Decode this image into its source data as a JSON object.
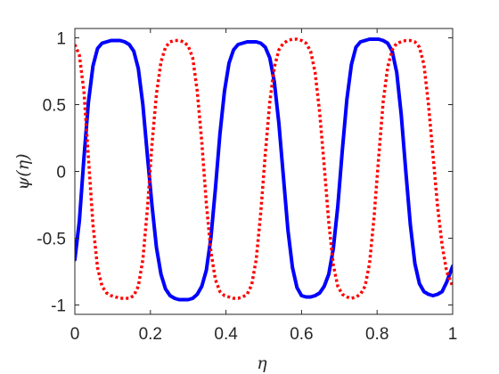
{
  "chart_data": {
    "type": "line",
    "title": "",
    "xlabel": "η",
    "ylabel": "ψ(η)",
    "xlim": [
      0,
      1
    ],
    "ylim": [
      -1.07,
      1.07
    ],
    "grid": false,
    "legend": "none",
    "x_ticks": [
      0,
      0.2,
      0.4,
      0.6,
      0.8,
      1
    ],
    "x_tick_labels": [
      "0",
      "0.2",
      "0.4",
      "0.6",
      "0.8",
      "1"
    ],
    "y_ticks": [
      -1,
      -0.5,
      0,
      0.5,
      1
    ],
    "y_tick_labels": [
      "-1",
      "-0.5",
      "0",
      "0.5",
      "1"
    ],
    "colors": {
      "solid_series": "#0000ff",
      "dotted_series": "#ff0000",
      "axes": "#262626"
    },
    "series": [
      {
        "style": "solid",
        "color": "#0000ff",
        "x": [
          0,
          0.012,
          0.024,
          0.036,
          0.048,
          0.06,
          0.072,
          0.084,
          0.096,
          0.108,
          0.12,
          0.132,
          0.144,
          0.156,
          0.168,
          0.18,
          0.192,
          0.204,
          0.216,
          0.228,
          0.24,
          0.252,
          0.264,
          0.276,
          0.288,
          0.3,
          0.312,
          0.324,
          0.336,
          0.348,
          0.36,
          0.372,
          0.384,
          0.396,
          0.408,
          0.42,
          0.432,
          0.444,
          0.456,
          0.468,
          0.48,
          0.492,
          0.504,
          0.516,
          0.528,
          0.54,
          0.552,
          0.564,
          0.576,
          0.588,
          0.6,
          0.612,
          0.624,
          0.636,
          0.648,
          0.66,
          0.672,
          0.684,
          0.696,
          0.708,
          0.72,
          0.732,
          0.744,
          0.756,
          0.768,
          0.78,
          0.792,
          0.804,
          0.816,
          0.828,
          0.84,
          0.852,
          0.864,
          0.876,
          0.888,
          0.9,
          0.912,
          0.924,
          0.936,
          0.948,
          0.96,
          0.972,
          0.984,
          1
        ],
        "y": [
          -0.66,
          -0.37,
          0.1,
          0.52,
          0.79,
          0.92,
          0.96,
          0.97,
          0.98,
          0.98,
          0.98,
          0.97,
          0.95,
          0.9,
          0.77,
          0.5,
          0.12,
          -0.25,
          -0.57,
          -0.77,
          -0.88,
          -0.93,
          -0.95,
          -0.96,
          -0.96,
          -0.96,
          -0.95,
          -0.92,
          -0.86,
          -0.74,
          -0.5,
          -0.13,
          0.28,
          0.6,
          0.81,
          0.91,
          0.95,
          0.96,
          0.97,
          0.97,
          0.97,
          0.96,
          0.93,
          0.85,
          0.67,
          0.36,
          -0.04,
          -0.44,
          -0.72,
          -0.87,
          -0.93,
          -0.94,
          -0.94,
          -0.93,
          -0.91,
          -0.86,
          -0.77,
          -0.58,
          -0.26,
          0.16,
          0.54,
          0.8,
          0.93,
          0.97,
          0.98,
          0.99,
          0.99,
          0.99,
          0.98,
          0.96,
          0.9,
          0.74,
          0.42,
          0.0,
          -0.4,
          -0.69,
          -0.84,
          -0.9,
          -0.92,
          -0.93,
          -0.92,
          -0.9,
          -0.83,
          -0.71
        ]
      },
      {
        "style": "dotted",
        "color": "#ff0000",
        "x": [
          0,
          0.012,
          0.024,
          0.036,
          0.048,
          0.06,
          0.072,
          0.084,
          0.096,
          0.108,
          0.12,
          0.132,
          0.144,
          0.156,
          0.168,
          0.18,
          0.192,
          0.204,
          0.216,
          0.228,
          0.24,
          0.252,
          0.264,
          0.276,
          0.288,
          0.3,
          0.312,
          0.324,
          0.336,
          0.348,
          0.36,
          0.372,
          0.384,
          0.396,
          0.408,
          0.42,
          0.432,
          0.444,
          0.456,
          0.468,
          0.48,
          0.492,
          0.504,
          0.516,
          0.528,
          0.54,
          0.552,
          0.564,
          0.576,
          0.588,
          0.6,
          0.612,
          0.624,
          0.636,
          0.648,
          0.66,
          0.672,
          0.684,
          0.696,
          0.708,
          0.72,
          0.732,
          0.744,
          0.756,
          0.768,
          0.78,
          0.792,
          0.804,
          0.816,
          0.828,
          0.84,
          0.852,
          0.864,
          0.876,
          0.888,
          0.9,
          0.912,
          0.924,
          0.936,
          0.948,
          0.96,
          0.972,
          0.984,
          1
        ],
        "y": [
          0.95,
          0.87,
          0.6,
          0.1,
          -0.4,
          -0.72,
          -0.86,
          -0.91,
          -0.93,
          -0.94,
          -0.95,
          -0.95,
          -0.95,
          -0.93,
          -0.86,
          -0.66,
          -0.28,
          0.2,
          0.58,
          0.82,
          0.93,
          0.97,
          0.98,
          0.98,
          0.97,
          0.94,
          0.85,
          0.6,
          0.22,
          -0.24,
          -0.6,
          -0.81,
          -0.9,
          -0.93,
          -0.94,
          -0.95,
          -0.95,
          -0.94,
          -0.92,
          -0.85,
          -0.66,
          -0.31,
          0.13,
          0.52,
          0.78,
          0.91,
          0.96,
          0.98,
          0.99,
          0.99,
          0.98,
          0.96,
          0.9,
          0.74,
          0.44,
          0.04,
          -0.38,
          -0.7,
          -0.86,
          -0.92,
          -0.94,
          -0.95,
          -0.94,
          -0.92,
          -0.86,
          -0.69,
          -0.34,
          0.1,
          0.52,
          0.78,
          0.91,
          0.96,
          0.97,
          0.98,
          0.98,
          0.97,
          0.93,
          0.8,
          0.5,
          0.12,
          -0.26,
          -0.55,
          -0.75,
          -0.86
        ]
      }
    ]
  }
}
